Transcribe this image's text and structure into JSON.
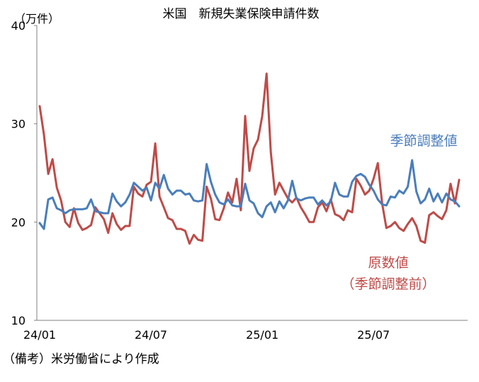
{
  "chart_data": {
    "type": "line",
    "title": "米国　新規失業保険申請件数",
    "ylabel": "（万件）",
    "xlabel": "",
    "ylim": [
      10,
      40
    ],
    "yticks": [
      "10",
      "20",
      "30",
      "40"
    ],
    "xticks": [
      {
        "label": "24/01",
        "index": 0
      },
      {
        "label": "24/07",
        "index": 26
      },
      {
        "label": "25/01",
        "index": 52
      },
      {
        "label": "25/07",
        "index": 78
      }
    ],
    "grid": false,
    "series": [
      {
        "name": "季節調整値",
        "label_lines": [
          "季節調整値"
        ],
        "color": "#4a7ebb",
        "values": [
          19.9,
          19.3,
          22.3,
          22.5,
          21.4,
          21.2,
          20.9,
          21.2,
          21.3,
          21.3,
          21.3,
          21.4,
          22.3,
          21.1,
          21.0,
          20.9,
          20.9,
          22.9,
          22.1,
          21.6,
          22.0,
          22.8,
          24.0,
          23.6,
          23.2,
          23.5,
          22.2,
          24.0,
          23.4,
          24.8,
          23.4,
          22.8,
          23.2,
          23.2,
          22.8,
          22.9,
          22.2,
          22.1,
          22.2,
          25.9,
          24.1,
          22.8,
          22.0,
          21.8,
          22.3,
          21.7,
          21.6,
          21.6,
          23.9,
          22.2,
          21.9,
          20.9,
          20.5,
          21.6,
          22.0,
          21.0,
          22.1,
          21.4,
          22.2,
          24.2,
          22.4,
          22.2,
          22.4,
          22.5,
          22.5,
          21.8,
          22.2,
          21.7,
          22.1,
          24.0,
          22.8,
          22.6,
          22.6,
          24.1,
          24.7,
          24.9,
          24.6,
          23.8,
          23.2,
          22.3,
          21.8,
          21.7,
          22.6,
          22.5,
          23.2,
          22.9,
          23.6,
          26.3,
          23.1,
          21.9,
          22.3,
          23.4,
          22.1,
          22.9,
          22.0,
          22.9,
          22.3,
          22.1,
          21.6
        ]
      },
      {
        "name": "原数値（季節調整前）",
        "label_lines": [
          "原数値",
          "（季節調整前）"
        ],
        "color": "#be4b48",
        "values": [
          31.8,
          28.9,
          24.9,
          26.4,
          23.5,
          22.2,
          20.0,
          19.5,
          21.4,
          19.9,
          19.2,
          19.4,
          19.7,
          21.5,
          20.9,
          20.3,
          18.9,
          20.9,
          19.8,
          19.2,
          19.6,
          19.6,
          23.6,
          22.9,
          22.6,
          23.8,
          24.1,
          28.0,
          22.6,
          21.5,
          20.4,
          20.2,
          19.3,
          19.3,
          19.1,
          17.8,
          18.7,
          18.2,
          18.1,
          23.6,
          22.4,
          20.3,
          20.2,
          21.4,
          23.0,
          22.0,
          24.4,
          21.2,
          30.8,
          25.2,
          27.5,
          28.4,
          30.8,
          35.1,
          27.1,
          22.8,
          24.0,
          23.2,
          22.4,
          22.0,
          22.5,
          21.5,
          20.8,
          20.0,
          20.0,
          21.5,
          22.0,
          21.1,
          22.3,
          20.8,
          20.6,
          20.2,
          21.2,
          21.0,
          24.4,
          23.7,
          22.8,
          23.2,
          24.4,
          26.0,
          21.9,
          19.4,
          19.6,
          20.0,
          19.4,
          19.1,
          19.8,
          20.4,
          19.6,
          18.1,
          17.9,
          20.7,
          21.0,
          20.6,
          20.3,
          21.2,
          23.9,
          21.9,
          24.3
        ]
      }
    ]
  },
  "footer": {
    "source": "（備考）米労働省により作成"
  }
}
